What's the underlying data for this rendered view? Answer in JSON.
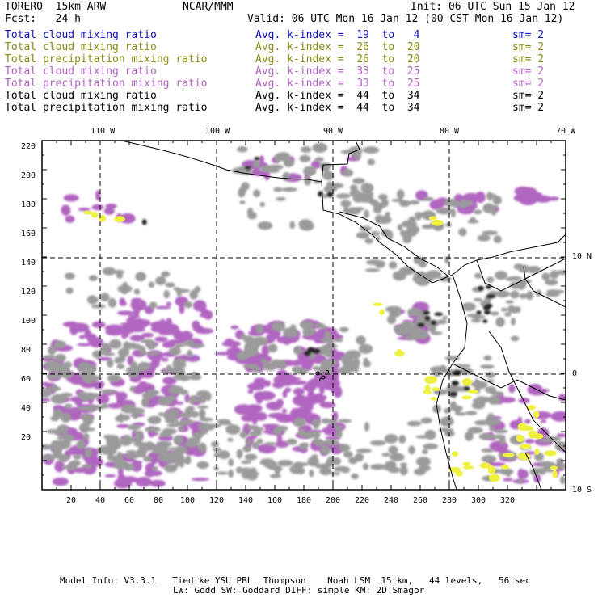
{
  "header": {
    "model": "TORERO  15km ARW",
    "center": "NCAR/MMM",
    "init": "Init: 06 UTC Sun 15 Jan 12",
    "fcst": "Fcst:   24 h",
    "valid": "Valid: 06 UTC Mon 16 Jan 12 (00 CST Mon 16 Jan 12)"
  },
  "legend": [
    {
      "field": "Total cloud mixing ratio",
      "k": "Avg. k-index =  19  to   4",
      "sm": "sm= 2",
      "color": "#1010c0"
    },
    {
      "field": "Total cloud mixing ratio",
      "k": "Avg. k-index =  26  to  20",
      "sm": "sm= 2",
      "color": "#8a8a10"
    },
    {
      "field": "Total precipitation mixing ratio",
      "k": "Avg. k-index =  26  to  20",
      "sm": "sm= 2",
      "color": "#8a8a10"
    },
    {
      "field": "Total cloud mixing ratio",
      "k": "Avg. k-index =  33  to  25",
      "sm": "sm= 2",
      "color": "#b060c0"
    },
    {
      "field": "Total precipitation mixing ratio",
      "k": "Avg. k-index =  33  to  25",
      "sm": "sm= 2",
      "color": "#b060c0"
    },
    {
      "field": "Total cloud mixing ratio",
      "k": "Avg. k-index =  44  to  34",
      "sm": "sm= 2",
      "color": "#000000"
    },
    {
      "field": "Total precipitation mixing ratio",
      "k": "Avg. k-index =  44  to  34",
      "sm": "sm= 2",
      "color": "#000000"
    }
  ],
  "map": {
    "lon_labels": [
      "110 W",
      "100 W",
      "90 W",
      "80 W",
      "70 W"
    ],
    "lat_labels": [
      "10 N",
      "0",
      "10 S"
    ],
    "y_ticks": [
      "220",
      "200",
      "180",
      "160",
      "140",
      "120",
      "100",
      "80",
      "60",
      "40",
      "20"
    ],
    "x_ticks": [
      "20",
      "40",
      "60",
      "80",
      "100",
      "120",
      "140",
      "160",
      "180",
      "200",
      "220",
      "240",
      "260",
      "280",
      "300",
      "320"
    ],
    "colors": {
      "gray": "#9a9a9a",
      "purple": "#b065c0",
      "yellow": "#f0f040",
      "cyan": "#c8f0f8"
    }
  },
  "footer": {
    "line1": "Model Info: V3.3.1   Tiedtke YSU PBL  Thompson    Noah LSM  15 km,   44 levels,   56 sec",
    "line2": "LW: Godd SW: Goddard DIFF: simple KM: 2D Smagor"
  }
}
